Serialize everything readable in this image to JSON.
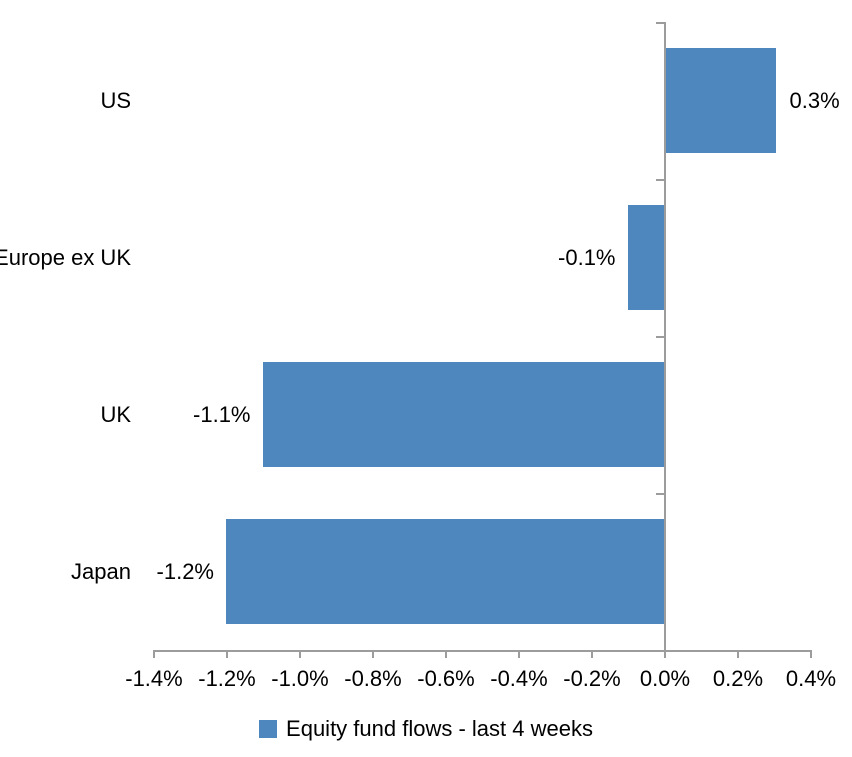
{
  "chart_data": {
    "type": "bar",
    "orientation": "horizontal",
    "categories": [
      "US",
      "Europe ex UK",
      "UK",
      "Japan"
    ],
    "values": [
      0.3,
      -0.1,
      -1.1,
      -1.2
    ],
    "value_labels": [
      "0.3%",
      "-0.1%",
      "-1.1%",
      "-1.2%"
    ],
    "xlim": [
      -1.4,
      0.4
    ],
    "x_ticks": [
      -1.4,
      -1.2,
      -1.0,
      -0.8,
      -0.6,
      -0.4,
      -0.2,
      0.0,
      0.2,
      0.4
    ],
    "x_tick_labels": [
      "-1.4%",
      "-1.2%",
      "-1.0%",
      "-0.8%",
      "-0.6%",
      "-0.4%",
      "-0.2%",
      "0.0%",
      "0.2%",
      "0.4%"
    ],
    "legend": "Equity fund flows - last 4 weeks",
    "legend_position": "bottom",
    "grid": false,
    "bar_color": "#4E86BE",
    "axis_color": "#9C9C9C",
    "text_color": "#000000"
  }
}
